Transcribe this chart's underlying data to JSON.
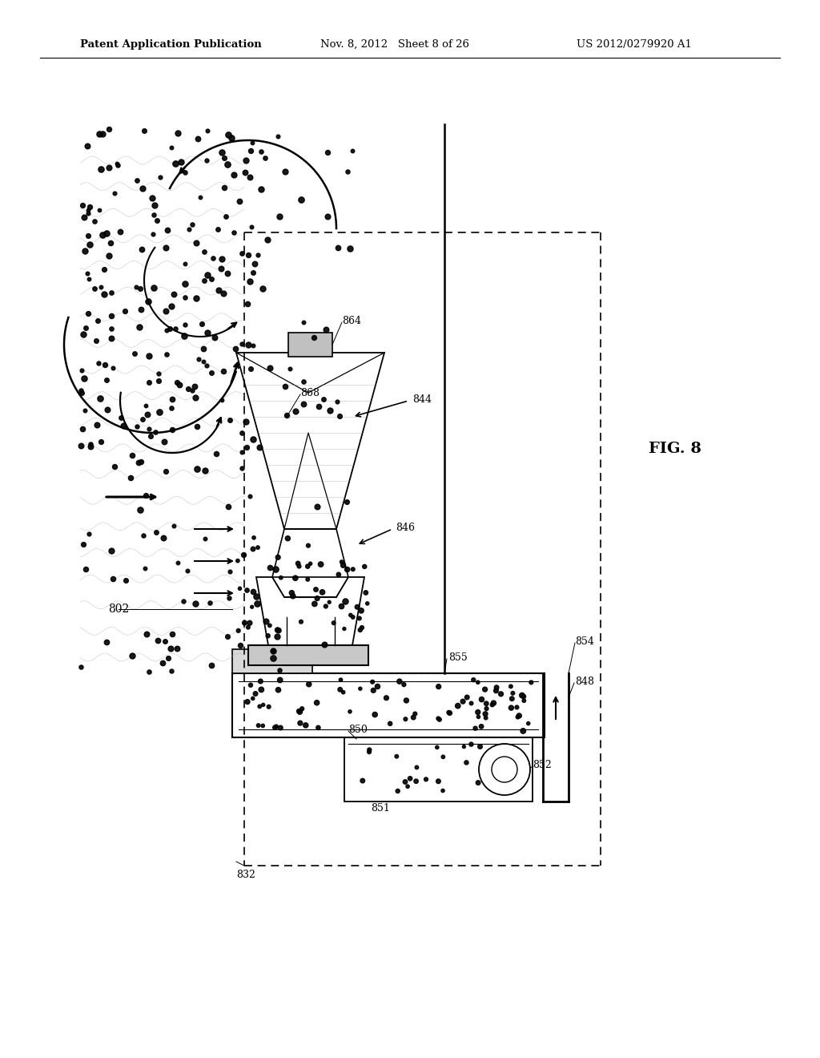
{
  "title_left": "Patent Application Publication",
  "title_mid": "Nov. 8, 2012   Sheet 8 of 26",
  "title_right": "US 2012/0279920 A1",
  "fig_label": "FIG. 8",
  "bg_color": "#ffffff"
}
